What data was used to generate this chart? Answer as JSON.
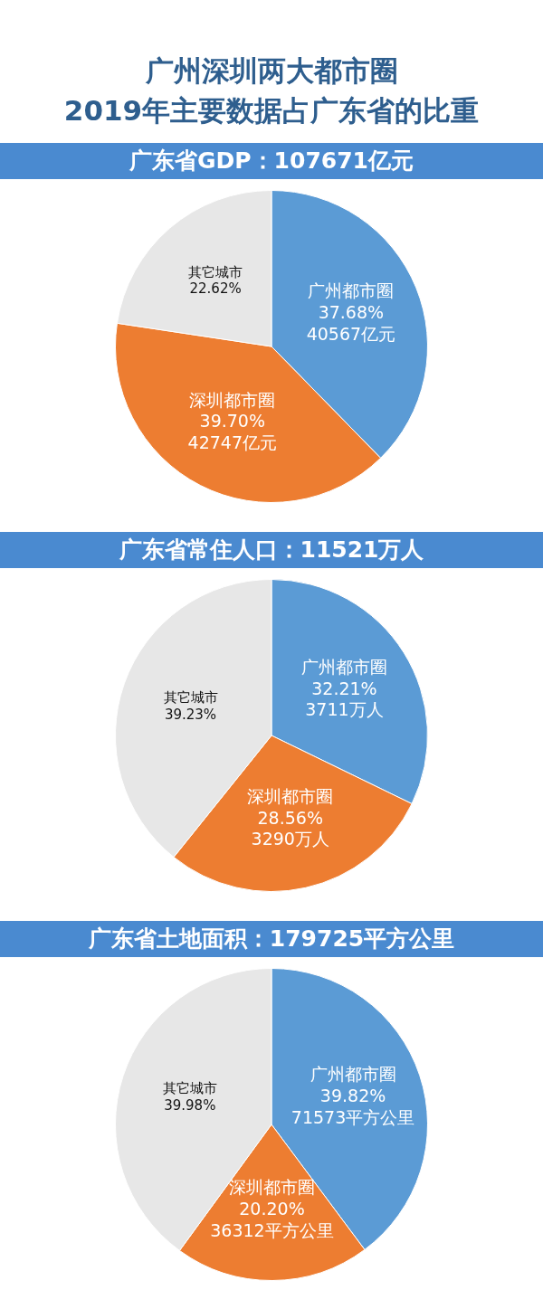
{
  "chart_data": [
    {
      "type": "other",
      "title": "广州深圳两大都市圈\n2019年主要数据占广东省的比重"
    },
    {
      "type": "pie",
      "title": "广东省GDP：107671亿元",
      "categories": [
        "广州都市圈",
        "深圳都市圈",
        "其它城市"
      ],
      "values": [
        37.68,
        39.7,
        22.62
      ],
      "colors": [
        "#5b9bd5",
        "#ed7d31",
        "#e7e7e7"
      ],
      "value_labels": [
        "37.68%\n40567亿元",
        "39.70%\n42747亿元",
        "22.62%"
      ]
    },
    {
      "type": "pie",
      "title": "广东省常住人口：11521万人",
      "categories": [
        "广州都市圈",
        "深圳都市圈",
        "其它城市"
      ],
      "values": [
        32.21,
        28.56,
        39.23
      ],
      "colors": [
        "#5b9bd5",
        "#ed7d31",
        "#e7e7e7"
      ],
      "value_labels": [
        "32.21%\n3711万人",
        "28.56%\n3290万人",
        "39.23%"
      ]
    },
    {
      "type": "pie",
      "title": "广东省土地面积：179725平方公里",
      "categories": [
        "广州都市圈",
        "深圳都市圈",
        "其它城市"
      ],
      "values": [
        39.82,
        20.2,
        39.98
      ],
      "colors": [
        "#5b9bd5",
        "#ed7d31",
        "#e7e7e7"
      ],
      "value_labels": [
        "39.82%\n71573平方公里",
        "20.20%\n36312平方公里",
        "39.98%"
      ]
    }
  ]
}
